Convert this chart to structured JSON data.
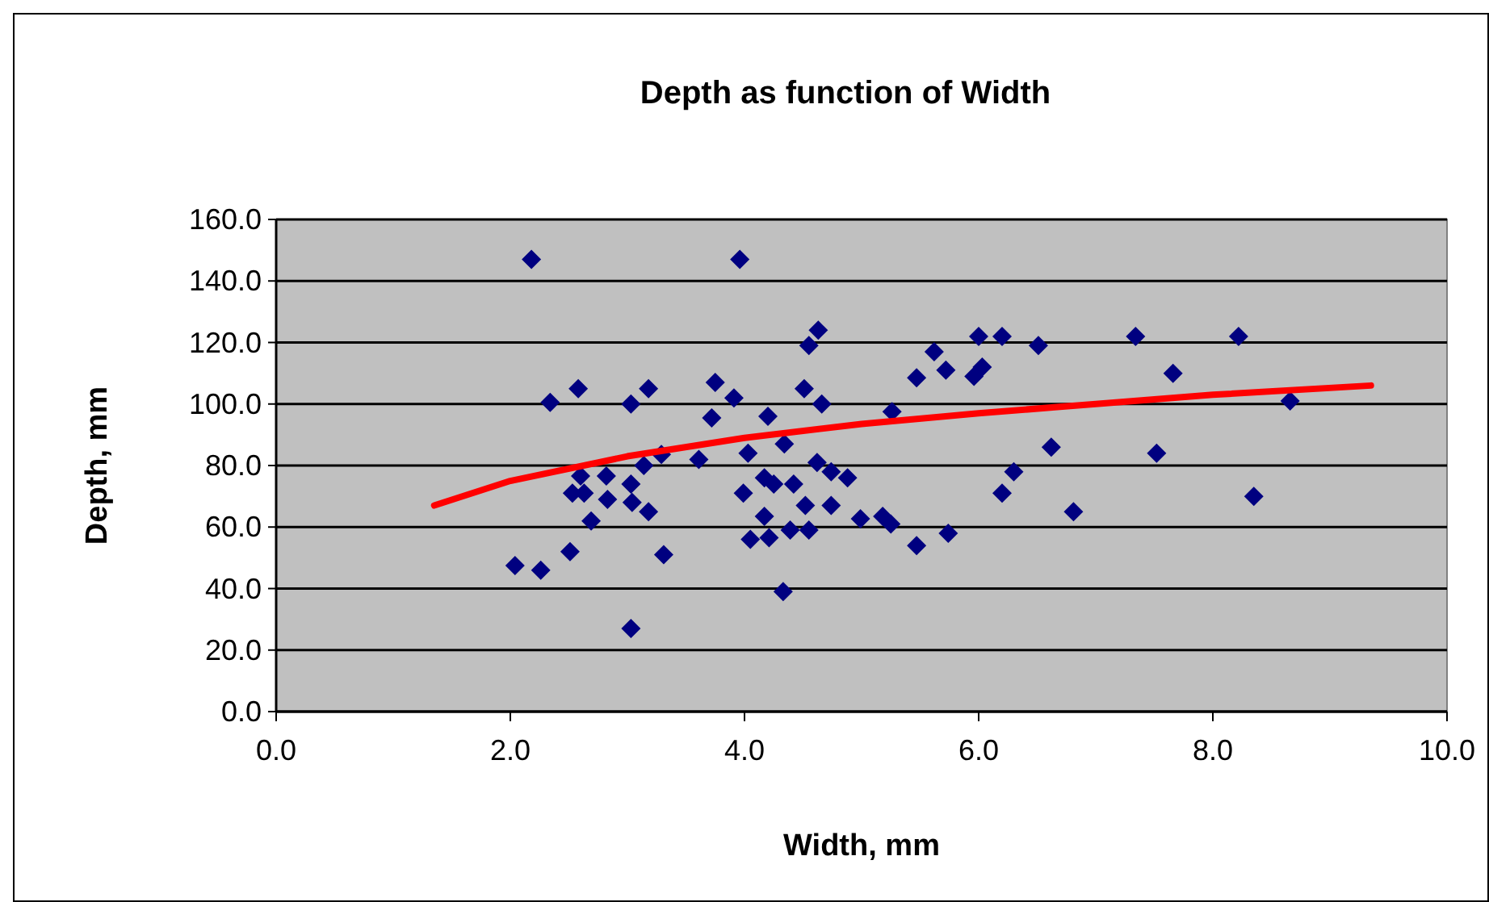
{
  "chart_data": {
    "type": "scatter",
    "title": "Depth as function of Width",
    "xlabel": "Width, mm",
    "ylabel": "Depth, mm",
    "xlim": [
      0,
      10
    ],
    "ylim": [
      0,
      160
    ],
    "xticks": [
      {
        "value": 0,
        "label": "0.0"
      },
      {
        "value": 2,
        "label": "2.0"
      },
      {
        "value": 4,
        "label": "4.0"
      },
      {
        "value": 6,
        "label": "6.0"
      },
      {
        "value": 8,
        "label": "8.0"
      },
      {
        "value": 10,
        "label": "10.0"
      }
    ],
    "yticks": [
      {
        "value": 0,
        "label": "0.0"
      },
      {
        "value": 20,
        "label": "20.0"
      },
      {
        "value": 40,
        "label": "40.0"
      },
      {
        "value": 60,
        "label": "60.0"
      },
      {
        "value": 80,
        "label": "80.0"
      },
      {
        "value": 100,
        "label": "100.0"
      },
      {
        "value": 120,
        "label": "120.0"
      },
      {
        "value": 140,
        "label": "140.0"
      },
      {
        "value": 160,
        "label": "160.0"
      }
    ],
    "grid": "y",
    "series": [
      {
        "type": "scatter",
        "color": "#000080",
        "marker": "diamond",
        "x": [
          2.04,
          2.18,
          2.26,
          2.34,
          2.51,
          2.53,
          2.58,
          2.6,
          2.63,
          2.69,
          2.82,
          2.83,
          3.03,
          3.03,
          3.03,
          3.04,
          3.14,
          3.18,
          3.18,
          3.29,
          3.31,
          3.61,
          3.72,
          3.75,
          3.91,
          3.96,
          3.99,
          4.03,
          4.05,
          4.17,
          4.17,
          4.2,
          4.21,
          4.25,
          4.33,
          4.34,
          4.39,
          4.42,
          4.51,
          4.52,
          4.55,
          4.55,
          4.62,
          4.63,
          4.66,
          4.74,
          4.74,
          4.88,
          4.99,
          5.18,
          5.25,
          5.26,
          5.47,
          5.47,
          5.62,
          5.72,
          5.74,
          5.96,
          6.0,
          6.03,
          6.2,
          6.2,
          6.3,
          6.51,
          6.62,
          6.81,
          7.34,
          7.52,
          7.66,
          8.22,
          8.35,
          8.66
        ],
        "values": [
          47.5,
          147,
          46,
          100.5,
          52,
          71,
          105,
          76.6,
          71,
          62,
          76.6,
          69,
          100,
          27,
          74,
          68,
          80,
          105,
          65,
          83.6,
          51,
          82,
          95.5,
          107,
          102,
          147,
          71,
          84,
          56,
          76,
          63.5,
          96,
          56.5,
          74,
          39,
          87,
          59,
          74,
          105,
          67,
          119,
          59,
          81,
          124,
          100,
          78,
          67,
          76,
          62.7,
          63.5,
          61,
          97.5,
          54,
          108.5,
          117,
          111,
          58,
          109,
          122,
          112,
          122,
          71,
          78,
          119,
          86,
          65,
          122,
          84,
          110,
          122,
          70,
          101
        ]
      },
      {
        "type": "line",
        "color": "#ff0000",
        "marker": "none",
        "line_style": "solid",
        "x": [
          1.35,
          2,
          3,
          4,
          5,
          6,
          7,
          8,
          9.35
        ],
        "values": [
          67,
          75,
          83,
          89,
          93.5,
          97,
          100,
          103,
          106
        ]
      }
    ]
  }
}
